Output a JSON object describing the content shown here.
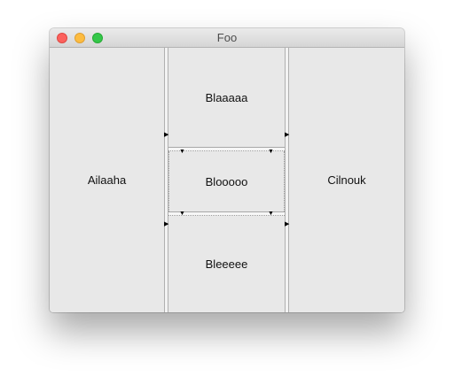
{
  "window": {
    "title": "Foo"
  },
  "panes": {
    "left": "Ailaaha",
    "center_top": "Blaaaaa",
    "center_middle": "Blooooo",
    "center_bottom": "Bleeeee",
    "right": "Cilnouk"
  },
  "icons": {
    "close": "close-icon",
    "minimize": "minimize-icon",
    "zoom": "zoom-icon",
    "divider_arrow_right": "arrow-right-icon",
    "divider_arrow_down": "arrow-down-icon"
  },
  "colors": {
    "close": "#fc615d",
    "minimize": "#fdbc40",
    "zoom": "#34c749",
    "pane_background": "#e8e8e8"
  }
}
